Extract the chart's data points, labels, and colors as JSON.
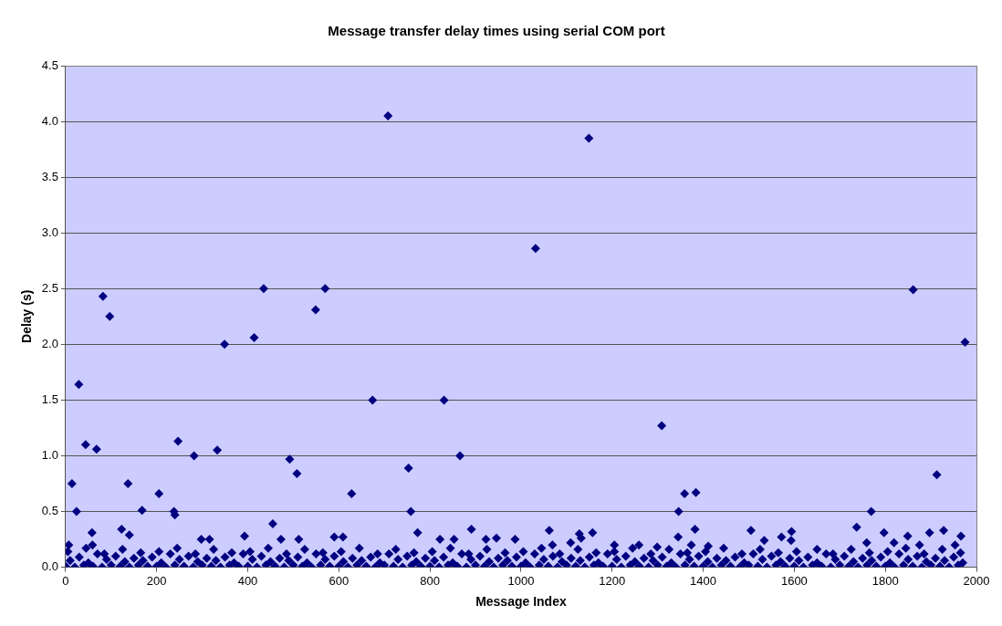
{
  "chart_data": {
    "type": "scatter",
    "title": "Message transfer delay times using serial COM port",
    "xlabel": "Message Index",
    "ylabel": "Delay (s)",
    "xlim": [
      0,
      2000
    ],
    "xticks": [
      0,
      200,
      400,
      600,
      800,
      1000,
      1200,
      1400,
      1600,
      1800,
      2000
    ],
    "ylim": [
      0,
      4.5
    ],
    "yticks": [
      {
        "value": 0,
        "label": "0.0"
      },
      {
        "value": 0.5,
        "label": "0.5"
      },
      {
        "value": 1,
        "label": "1.0"
      },
      {
        "value": 1.5,
        "label": "1.5"
      },
      {
        "value": 2,
        "label": "2.0"
      },
      {
        "value": 2.5,
        "label": "2.5"
      },
      {
        "value": 3,
        "label": "3.0"
      },
      {
        "value": 3.5,
        "label": "3.5"
      },
      {
        "value": 4,
        "label": "4.0"
      },
      {
        "value": 4.5,
        "label": "4.5"
      }
    ],
    "grid": "y",
    "legend": false,
    "marker": "diamond",
    "series": [
      {
        "color": "#000080",
        "x": [
          708,
          1149,
          1032,
          1861,
          1975,
          82,
          97,
          435,
          570,
          549,
          414,
          349,
          29,
          674,
          831,
          44,
          68,
          247,
          282,
          333,
          866,
          492,
          508,
          753,
          1309,
          14,
          137,
          205,
          628,
          1913,
          1359,
          1384,
          24,
          168,
          238,
          240,
          758,
          1346,
          1769,
          455,
          58,
          123,
          773,
          891,
          140,
          393,
          590,
          609,
          923,
          946,
          987,
          298,
          316,
          512,
          822,
          853,
          7,
          59,
          473,
          1062,
          1157,
          1382,
          1505,
          1594,
          1737,
          1797,
          1897,
          1928,
          1849,
          1966,
          1128,
          1069,
          1109,
          1132,
          1205,
          1259,
          1299,
          1345,
          1374,
          1411,
          1534,
          1572,
          1593,
          1650,
          1759,
          1819,
          1875,
          1953
        ],
        "values": [
          4.05,
          3.85,
          2.86,
          2.49,
          2.02,
          2.43,
          2.25,
          2.5,
          2.5,
          2.31,
          2.06,
          2.0,
          1.64,
          1.5,
          1.5,
          1.1,
          1.06,
          1.13,
          1.0,
          1.05,
          1.0,
          0.97,
          0.84,
          0.89,
          1.27,
          0.75,
          0.75,
          0.66,
          0.66,
          0.83,
          0.66,
          0.67,
          0.5,
          0.51,
          0.5,
          0.47,
          0.5,
          0.5,
          0.5,
          0.39,
          0.31,
          0.34,
          0.31,
          0.34,
          0.29,
          0.28,
          0.27,
          0.27,
          0.25,
          0.26,
          0.25,
          0.25,
          0.25,
          0.25,
          0.25,
          0.25,
          0.2,
          0.2,
          0.25,
          0.33,
          0.31,
          0.34,
          0.33,
          0.32,
          0.36,
          0.31,
          0.31,
          0.33,
          0.28,
          0.28,
          0.3,
          0.2,
          0.22,
          0.26,
          0.2,
          0.2,
          0.18,
          0.27,
          0.2,
          0.19,
          0.24,
          0.27,
          0.24,
          0.16,
          0.22,
          0.22,
          0.2,
          0.2
        ]
      },
      {
        "color": "#000080",
        "x": [
          0,
          20,
          40,
          60,
          80,
          100,
          120,
          140,
          160,
          180,
          200,
          220,
          240,
          260,
          280,
          300,
          320,
          340,
          360,
          380,
          400,
          420,
          440,
          460,
          480,
          500,
          520,
          540,
          560,
          580,
          600,
          620,
          640,
          660,
          680,
          700,
          720,
          740,
          760,
          780,
          800,
          820,
          840,
          860,
          880,
          900,
          920,
          940,
          960,
          980,
          1000,
          1020,
          1040,
          1060,
          1080,
          1100,
          1120,
          1140,
          1160,
          1180,
          1200,
          1220,
          1240,
          1260,
          1280,
          1300,
          1320,
          1340,
          1360,
          1380,
          1400,
          1420,
          1440,
          1460,
          1480,
          1500,
          1520,
          1540,
          1560,
          1580,
          1600,
          1620,
          1640,
          1660,
          1680,
          1700,
          1720,
          1740,
          1760,
          1780,
          1800,
          1820,
          1840,
          1860,
          1880,
          1900,
          1920,
          1940,
          1960
        ],
        "values": [
          0.01,
          0.0,
          0.02,
          0.01,
          0.0,
          0.02,
          0.01,
          0.0,
          0.02,
          0.01,
          0.01,
          0.0,
          0.02,
          0.01,
          0.0,
          0.02,
          0.01,
          0.0,
          0.02,
          0.01,
          0.01,
          0.0,
          0.02,
          0.01,
          0.0,
          0.02,
          0.01,
          0.0,
          0.02,
          0.01,
          0.01,
          0.0,
          0.02,
          0.01,
          0.0,
          0.02,
          0.01,
          0.0,
          0.02,
          0.01,
          0.01,
          0.0,
          0.02,
          0.01,
          0.0,
          0.02,
          0.01,
          0.0,
          0.02,
          0.01,
          0.01,
          0.0,
          0.02,
          0.01,
          0.0,
          0.02,
          0.01,
          0.0,
          0.02,
          0.01,
          0.01,
          0.0,
          0.02,
          0.01,
          0.0,
          0.02,
          0.01,
          0.0,
          0.02,
          0.01,
          0.01,
          0.0,
          0.02,
          0.01,
          0.0,
          0.02,
          0.01,
          0.0,
          0.02,
          0.01,
          0.01,
          0.0,
          0.02,
          0.01,
          0.0,
          0.02,
          0.01,
          0.0,
          0.02,
          0.01,
          0.01,
          0.0,
          0.02,
          0.01,
          0.0,
          0.02,
          0.01,
          0.0,
          0.02
        ]
      },
      {
        "color": "#000080",
        "x": [
          10,
          30,
          50,
          70,
          90,
          110,
          130,
          150,
          170,
          190,
          210,
          230,
          250,
          270,
          290,
          310,
          330,
          350,
          370,
          390,
          410,
          430,
          450,
          470,
          490,
          510,
          530,
          550,
          570,
          590,
          610,
          630,
          650,
          670,
          690,
          710,
          730,
          750,
          770,
          790,
          810,
          830,
          850,
          870,
          890,
          910,
          930,
          950,
          970,
          990,
          1010,
          1030,
          1050,
          1070,
          1090,
          1110,
          1130,
          1150,
          1170,
          1190,
          1210,
          1230,
          1250,
          1270,
          1290,
          1310,
          1330,
          1350,
          1370,
          1390,
          1410,
          1430,
          1450,
          1470,
          1490,
          1510,
          1530,
          1550,
          1570,
          1590,
          1610,
          1630,
          1650,
          1670,
          1690,
          1710,
          1730,
          1750,
          1770,
          1790,
          1810,
          1830,
          1850,
          1870,
          1890,
          1910,
          1930,
          1950,
          1970
        ],
        "values": [
          0.06,
          0.09,
          0.04,
          0.12,
          0.07,
          0.1,
          0.05,
          0.08,
          0.06,
          0.09,
          0.04,
          0.12,
          0.07,
          0.1,
          0.05,
          0.08,
          0.06,
          0.09,
          0.04,
          0.12,
          0.07,
          0.1,
          0.05,
          0.08,
          0.06,
          0.09,
          0.04,
          0.12,
          0.07,
          0.1,
          0.05,
          0.08,
          0.06,
          0.09,
          0.04,
          0.12,
          0.07,
          0.1,
          0.05,
          0.08,
          0.06,
          0.09,
          0.04,
          0.12,
          0.07,
          0.1,
          0.05,
          0.08,
          0.06,
          0.09,
          0.04,
          0.12,
          0.07,
          0.1,
          0.05,
          0.08,
          0.06,
          0.09,
          0.04,
          0.12,
          0.07,
          0.1,
          0.05,
          0.08,
          0.06,
          0.09,
          0.04,
          0.12,
          0.07,
          0.1,
          0.05,
          0.08,
          0.06,
          0.09,
          0.04,
          0.12,
          0.07,
          0.1,
          0.05,
          0.08,
          0.06,
          0.09,
          0.04,
          0.12,
          0.07,
          0.1,
          0.05,
          0.08,
          0.06,
          0.09,
          0.04,
          0.12,
          0.07,
          0.1,
          0.05,
          0.08,
          0.06,
          0.09,
          0.04
        ]
      },
      {
        "color": "#000080",
        "x": [
          5,
          45,
          85,
          125,
          165,
          205,
          245,
          285,
          325,
          365,
          405,
          445,
          485,
          525,
          565,
          605,
          645,
          685,
          725,
          765,
          805,
          845,
          885,
          925,
          965,
          1005,
          1045,
          1085,
          1125,
          1165,
          1205,
          1245,
          1285,
          1325,
          1365,
          1405,
          1445,
          1485,
          1525,
          1565,
          1605,
          1645,
          1685,
          1725,
          1765,
          1805,
          1845,
          1885,
          1925,
          1965
        ],
        "values": [
          0.14,
          0.17,
          0.12,
          0.16,
          0.13,
          0.14,
          0.17,
          0.12,
          0.16,
          0.13,
          0.14,
          0.17,
          0.12,
          0.16,
          0.13,
          0.14,
          0.17,
          0.12,
          0.16,
          0.13,
          0.14,
          0.17,
          0.12,
          0.16,
          0.13,
          0.14,
          0.17,
          0.12,
          0.16,
          0.13,
          0.14,
          0.17,
          0.12,
          0.16,
          0.13,
          0.14,
          0.17,
          0.12,
          0.16,
          0.13,
          0.14,
          null,
          0.12,
          0.16,
          0.13,
          0.14,
          0.17,
          0.12,
          0.16,
          0.13
        ]
      }
    ]
  }
}
